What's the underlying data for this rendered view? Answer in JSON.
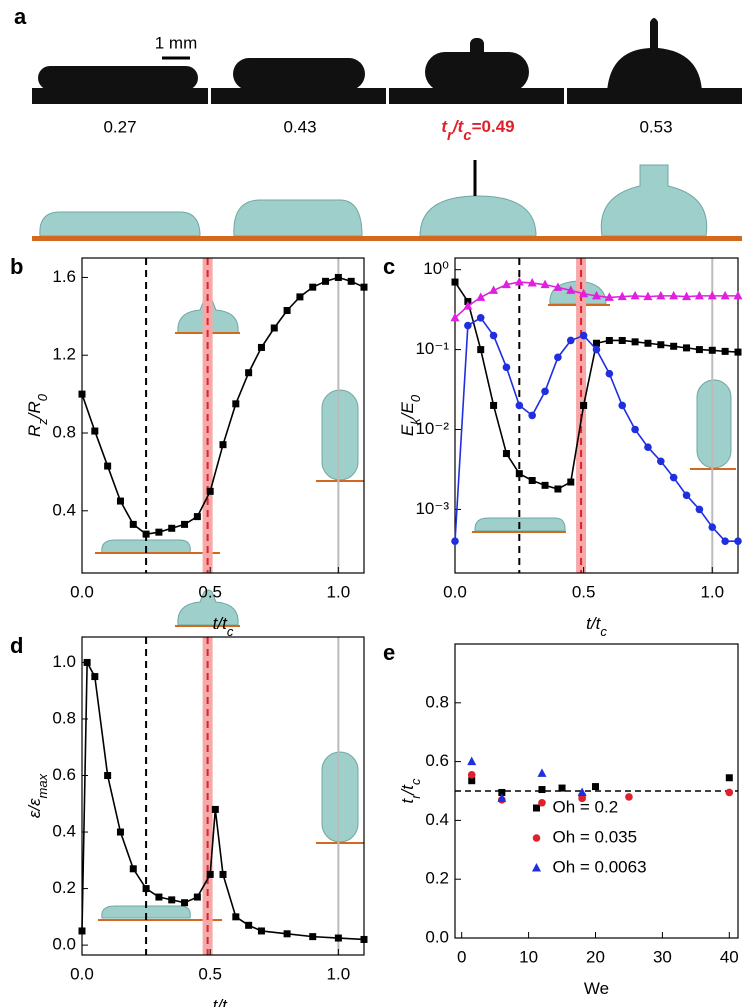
{
  "panel_a": {
    "panel": "a",
    "scale_bar": "1 mm",
    "labels": [
      "0.27",
      "0.43",
      [
        "t",
        "r",
        "/t",
        "c",
        "=0.49"
      ],
      "0.53"
    ]
  },
  "chart_data": [
    {
      "type": "line",
      "panel": "b",
      "ylabel": [
        "R",
        "z",
        "/R",
        "0"
      ],
      "xlabel": [
        "t/t",
        "c"
      ],
      "x": [
        0,
        0.05,
        0.1,
        0.15,
        0.2,
        0.25,
        0.3,
        0.35,
        0.4,
        0.45,
        0.5,
        0.55,
        0.6,
        0.65,
        0.7,
        0.75,
        0.8,
        0.85,
        0.9,
        0.95,
        1.0,
        1.05,
        1.1
      ],
      "series": [
        {
          "color": "#000000",
          "marker": "square",
          "values": [
            1.0,
            0.81,
            0.63,
            0.45,
            0.33,
            0.28,
            0.29,
            0.31,
            0.33,
            0.37,
            0.5,
            0.74,
            0.95,
            1.11,
            1.24,
            1.34,
            1.43,
            1.5,
            1.55,
            1.58,
            1.6,
            1.58,
            1.55
          ]
        }
      ],
      "xlim": [
        0,
        1.1
      ],
      "ylim": [
        0.08,
        1.7
      ],
      "xticks": [
        {
          "value": 0,
          "label": "0.0"
        },
        0.5,
        {
          "value": 1,
          "label": "1.0"
        }
      ],
      "yticks": [
        0.4,
        0.8,
        1.2,
        1.6
      ],
      "vlines": [
        {
          "x": 0.25,
          "color": "#000000",
          "dash": true
        },
        {
          "x": 0.49,
          "color": "#e0202a",
          "dash": true,
          "band": "#f6a9a9"
        },
        {
          "x": 1.0,
          "color": "#bbbbbb",
          "dash": false
        }
      ]
    },
    {
      "type": "line",
      "panel": "c",
      "ylabel": [
        "E",
        "k",
        "/E",
        "0"
      ],
      "xlabel": [
        "t/t",
        "c"
      ],
      "log_y": true,
      "x": [
        0,
        0.05,
        0.1,
        0.15,
        0.2,
        0.25,
        0.3,
        0.35,
        0.4,
        0.45,
        0.5,
        0.55,
        0.6,
        0.65,
        0.7,
        0.75,
        0.8,
        0.85,
        0.9,
        0.95,
        1.0,
        1.05,
        1.1
      ],
      "series": [
        {
          "color": "#000000",
          "marker": "square",
          "values": [
            0.7,
            0.4,
            0.1,
            0.02,
            0.005,
            0.0028,
            0.0023,
            0.002,
            0.0018,
            0.0022,
            0.02,
            0.12,
            0.13,
            0.13,
            0.125,
            0.12,
            0.115,
            0.11,
            0.105,
            0.1,
            0.098,
            0.095,
            0.093
          ]
        },
        {
          "color": "#1f2fe0",
          "marker": "circle",
          "values": [
            0.0004,
            0.2,
            0.25,
            0.15,
            0.06,
            0.02,
            0.015,
            0.03,
            0.08,
            0.13,
            0.15,
            0.1,
            0.05,
            0.02,
            0.01,
            0.006,
            0.004,
            0.0025,
            0.0015,
            0.001,
            0.0006,
            0.0004,
            0.0004
          ]
        },
        {
          "color": "#e020e0",
          "marker": "triangle",
          "values": [
            0.25,
            0.35,
            0.45,
            0.55,
            0.65,
            0.7,
            0.68,
            0.65,
            0.6,
            0.55,
            0.5,
            0.47,
            0.45,
            0.46,
            0.47,
            0.46,
            0.47,
            0.47,
            0.46,
            0.47,
            0.47,
            0.47,
            0.47
          ]
        }
      ],
      "xlim": [
        0,
        1.1
      ],
      "ylim": [
        0.00016,
        1.4
      ],
      "xticks": [
        {
          "value": 0,
          "label": "0.0"
        },
        0.5,
        {
          "value": 1,
          "label": "1.0"
        }
      ],
      "yticks": [
        {
          "value": 0.001,
          "label": "10⁻³"
        },
        {
          "value": 0.01,
          "label": "10⁻²"
        },
        {
          "value": 0.1,
          "label": "10⁻¹"
        },
        {
          "value": 1,
          "label": "10⁰"
        }
      ],
      "vlines": [
        {
          "x": 0.25,
          "color": "#000000",
          "dash": true
        },
        {
          "x": 0.49,
          "color": "#e0202a",
          "dash": true,
          "band": "#f6a9a9"
        },
        {
          "x": 1.0,
          "color": "#bbbbbb",
          "dash": false
        }
      ]
    },
    {
      "type": "line",
      "panel": "d",
      "ylabel": [
        "ε/ε",
        "max"
      ],
      "xlabel": [
        "t/t",
        "c"
      ],
      "x": [
        0,
        0.02,
        0.05,
        0.1,
        0.15,
        0.2,
        0.25,
        0.3,
        0.35,
        0.4,
        0.45,
        0.5,
        0.52,
        0.55,
        0.6,
        0.65,
        0.7,
        0.8,
        0.9,
        1.0,
        1.1
      ],
      "series": [
        {
          "color": "#000000",
          "marker": "square",
          "values": [
            0.05,
            1.0,
            0.95,
            0.6,
            0.4,
            0.27,
            0.2,
            0.17,
            0.16,
            0.15,
            0.17,
            0.25,
            0.48,
            0.25,
            0.1,
            0.07,
            0.05,
            0.04,
            0.03,
            0.025,
            0.02
          ]
        }
      ],
      "xlim": [
        0,
        1.1
      ],
      "ylim": [
        -0.035,
        1.09
      ],
      "xticks": [
        {
          "value": 0,
          "label": "0.0"
        },
        0.5,
        {
          "value": 1,
          "label": "1.0"
        }
      ],
      "yticks": [
        {
          "value": 0,
          "label": "0.0"
        },
        0.2,
        0.4,
        0.6,
        0.8,
        {
          "value": 1,
          "label": "1.0"
        }
      ],
      "vlines": [
        {
          "x": 0.25,
          "color": "#000000",
          "dash": true
        },
        {
          "x": 0.49,
          "color": "#e0202a",
          "dash": true,
          "band": "#f6a9a9"
        },
        {
          "x": 1.0,
          "color": "#bbbbbb",
          "dash": false
        }
      ]
    },
    {
      "type": "scatter",
      "panel": "e",
      "ylabel": [
        "t",
        "r",
        "/t",
        "c"
      ],
      "xlabel": [
        "We"
      ],
      "legend": "lower center",
      "series": [
        {
          "name": "Oh = 0.2",
          "color": "#000000",
          "marker": "square",
          "x": [
            1.5,
            6,
            12,
            15,
            18,
            20,
            40
          ],
          "values": [
            0.535,
            0.495,
            0.505,
            0.51,
            0.48,
            0.515,
            0.545
          ]
        },
        {
          "name": "Oh = 0.035",
          "color": "#e0202a",
          "marker": "circle",
          "x": [
            1.5,
            6,
            12,
            18,
            25,
            40
          ],
          "values": [
            0.555,
            0.47,
            0.46,
            0.475,
            0.48,
            0.495
          ]
        },
        {
          "name": "Oh = 0.0063",
          "color": "#1f2fe0",
          "marker": "triangle",
          "x": [
            1.5,
            6,
            12,
            18
          ],
          "values": [
            0.6,
            0.475,
            0.56,
            0.495
          ]
        }
      ],
      "xlim": [
        -1,
        41.3
      ],
      "ylim": [
        0,
        1.0
      ],
      "xticks": [
        0,
        10,
        20,
        30,
        40
      ],
      "yticks": [
        {
          "value": 0,
          "label": "0.0"
        },
        0.2,
        0.4,
        0.6,
        0.8
      ],
      "hlines": [
        {
          "y": 0.5,
          "color": "#000000",
          "dash": true
        }
      ]
    }
  ]
}
